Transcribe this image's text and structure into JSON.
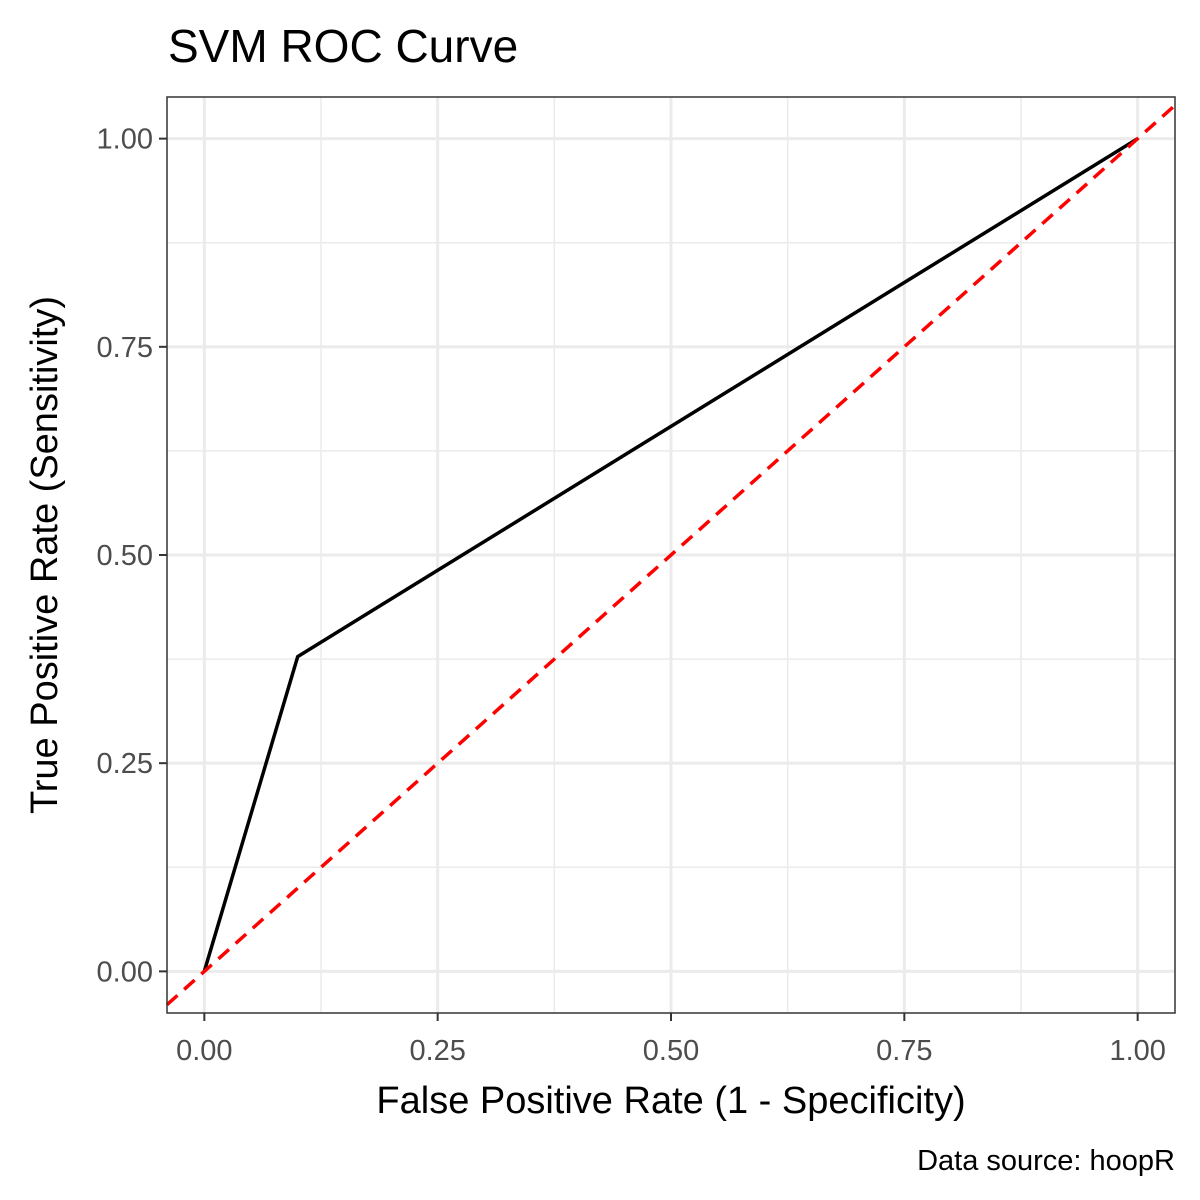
{
  "chart_data": {
    "type": "line",
    "title": "SVM ROC Curve",
    "xlabel": "False Positive Rate (1 - Specificity)",
    "ylabel": "True Positive Rate (Sensitivity)",
    "caption": "Data source: hoopR",
    "xlim": [
      -0.04,
      1.04
    ],
    "ylim": [
      -0.05,
      1.05
    ],
    "x_ticks": [
      0,
      0.25,
      0.5,
      0.75,
      1
    ],
    "x_tick_labels": [
      "0.00",
      "0.25",
      "0.50",
      "0.75",
      "1.00"
    ],
    "y_ticks": [
      0,
      0.25,
      0.5,
      0.75,
      1
    ],
    "y_tick_labels": [
      "0.00",
      "0.25",
      "0.50",
      "0.75",
      "1.00"
    ],
    "grid": true,
    "series": [
      {
        "x": [
          0.0,
          0.1,
          1.0
        ],
        "y": [
          0.0,
          0.378,
          1.0
        ],
        "color": "#000000",
        "style": "solid"
      },
      {
        "x": [
          -0.04,
          1.04
        ],
        "y": [
          -0.04,
          1.04
        ],
        "color": "#ff0000",
        "style": "dashed"
      }
    ]
  }
}
